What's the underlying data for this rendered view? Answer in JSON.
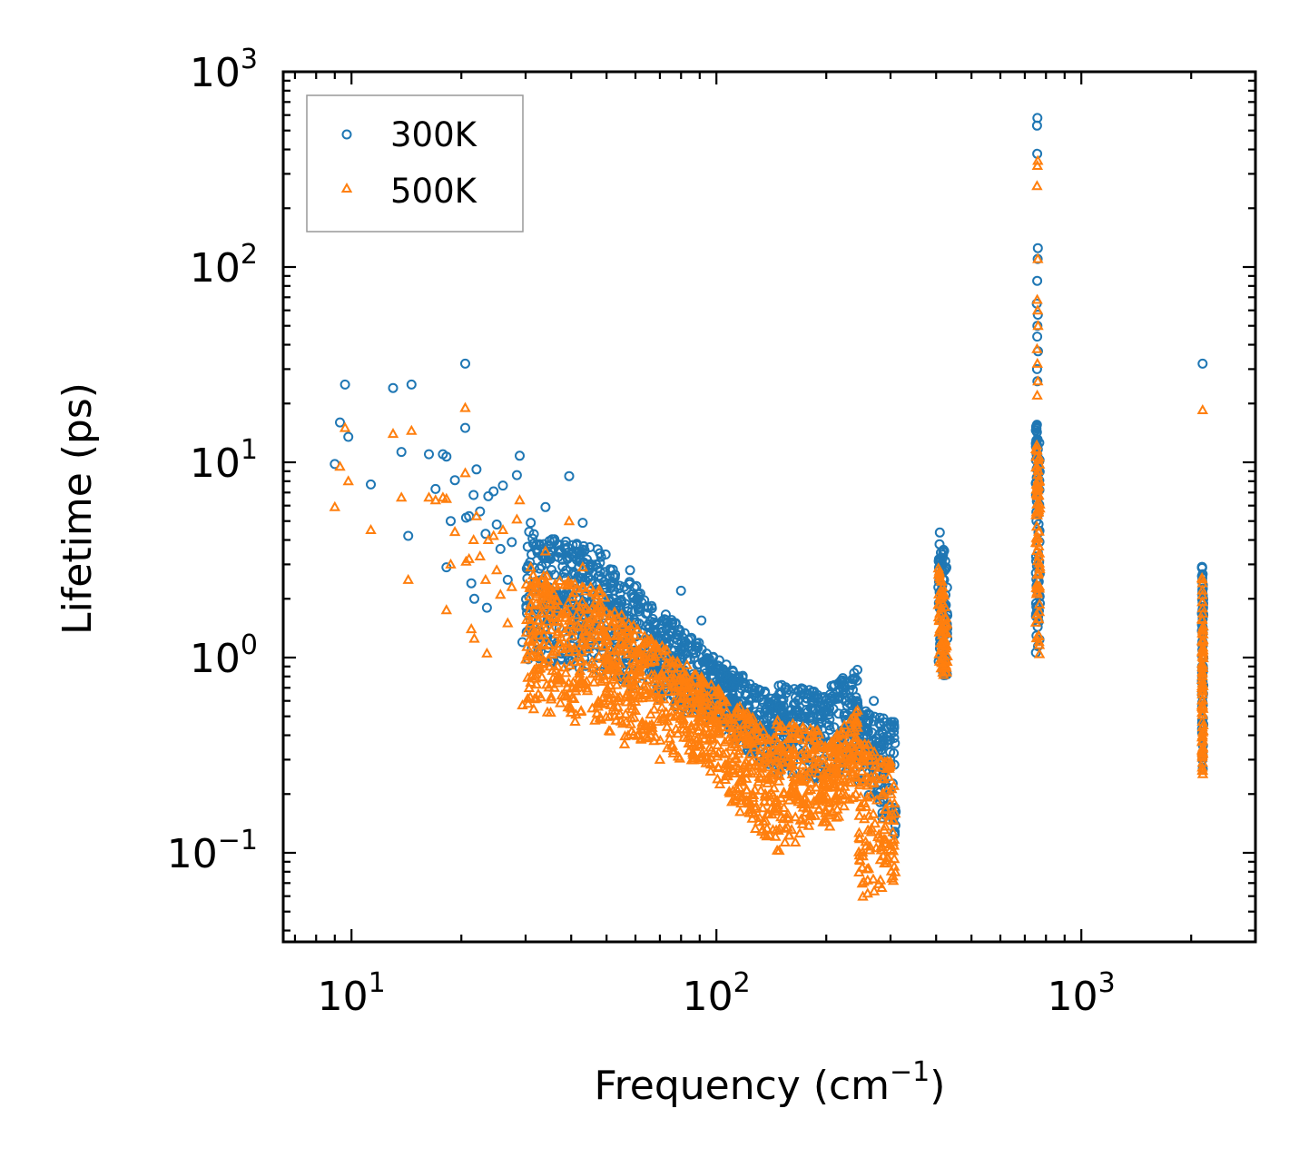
{
  "chart_data": {
    "type": "scatter",
    "title": "",
    "xlabel": "Frequency (cm",
    "xlabel_sup": "−1",
    "xlabel_end": ")",
    "ylabel": "Lifetime (ps)",
    "xscale": "log",
    "yscale": "log",
    "xlim": [
      6.5,
      3000
    ],
    "ylim": [
      0.035,
      1000
    ],
    "x_ticks": [
      {
        "value": 10,
        "base": "10",
        "exp": "1"
      },
      {
        "value": 100,
        "base": "10",
        "exp": "2"
      },
      {
        "value": 1000,
        "base": "10",
        "exp": "3"
      }
    ],
    "y_ticks": [
      {
        "value": 0.1,
        "base": "10",
        "exp": "−1"
      },
      {
        "value": 1,
        "base": "10",
        "exp": "0"
      },
      {
        "value": 10,
        "base": "10",
        "exp": "1"
      },
      {
        "value": 100,
        "base": "10",
        "exp": "2"
      },
      {
        "value": 1000,
        "base": "10",
        "exp": "3"
      }
    ],
    "legend": {
      "position": "top-left"
    },
    "series": [
      {
        "name": "300K",
        "marker": "circle",
        "color": "#1f77b4",
        "points": [
          [
            9,
            9.8
          ],
          [
            9.3,
            16
          ],
          [
            9.6,
            25
          ],
          [
            9.8,
            13.5
          ],
          [
            11.3,
            7.7
          ],
          [
            13,
            24
          ],
          [
            13.7,
            11.3
          ],
          [
            14.3,
            4.2
          ],
          [
            14.6,
            25
          ],
          [
            16.3,
            11
          ],
          [
            17,
            7.3
          ],
          [
            17.8,
            11
          ],
          [
            18.2,
            10.7
          ],
          [
            18.2,
            2.9
          ],
          [
            18.7,
            5
          ],
          [
            19.2,
            8.1
          ],
          [
            20.5,
            32
          ],
          [
            20.5,
            15
          ],
          [
            20.6,
            5.2
          ],
          [
            21,
            5.3
          ],
          [
            21.3,
            2.4
          ],
          [
            21.6,
            6.8
          ],
          [
            21.7,
            2
          ],
          [
            22,
            9.2
          ],
          [
            22.5,
            5.6
          ],
          [
            23.3,
            4.3
          ],
          [
            23.5,
            1.8
          ],
          [
            23.7,
            6.7
          ],
          [
            24.5,
            7.1
          ],
          [
            25,
            4.8
          ],
          [
            25.6,
            3.6
          ],
          [
            26,
            7.6
          ],
          [
            26.8,
            2.5
          ],
          [
            27.5,
            3.9
          ],
          [
            28.4,
            8.6
          ],
          [
            28.9,
            10.8
          ],
          [
            29.4,
            1.2
          ],
          [
            30.5,
            0.98
          ],
          [
            31,
            4.9
          ],
          [
            32.5,
            1.1
          ],
          [
            34,
            5.9
          ],
          [
            39.5,
            8.5
          ],
          [
            43,
            4.9
          ],
          [
            58,
            2.8
          ],
          [
            80,
            2.2
          ],
          [
            91,
            1.55
          ],
          [
            140,
            0.52
          ],
          [
            200,
            0.46
          ],
          [
            270,
            0.6
          ],
          [
            2150,
            32
          ]
        ],
        "bands": [
          {
            "x": [
              30,
              50
            ],
            "y_hi_start": 4.5,
            "y_hi_end": 3.5,
            "y_lo_start": 1.0,
            "y_lo_end": 0.8
          },
          {
            "x": [
              50,
              100
            ],
            "y_hi_start": 3.2,
            "y_hi_end": 1.0,
            "y_lo_start": 0.8,
            "y_lo_end": 0.45
          },
          {
            "x": [
              100,
              145
            ],
            "y_hi_start": 1.0,
            "y_hi_end": 0.62,
            "y_lo_start": 0.45,
            "y_lo_end": 0.25
          },
          {
            "x": [
              145,
              200
            ],
            "y_hi_start": 0.75,
            "y_hi_end": 0.65,
            "y_lo_start": 0.25,
            "y_lo_end": 0.22
          },
          {
            "x": [
              200,
              245
            ],
            "y_hi_start": 0.7,
            "y_hi_end": 0.88,
            "y_lo_start": 0.2,
            "y_lo_end": 0.3
          },
          {
            "x": [
              245,
              310
            ],
            "y_hi_start": 0.55,
            "y_hi_end": 0.48,
            "y_lo_start": 0.2,
            "y_lo_end": 0.12
          },
          {
            "x": [
              405,
              430
            ],
            "y_hi_start": 4.8,
            "y_hi_end": 3.0,
            "y_lo_start": 0.8,
            "y_lo_end": 0.8
          },
          {
            "x": [
              750,
              770
            ],
            "y_hi_start": 18,
            "y_hi_end": 12,
            "y_lo_start": 0.95,
            "y_lo_end": 0.95
          },
          {
            "x": [
              2140,
              2160
            ],
            "y_hi_start": 3.4,
            "y_hi_end": 2.2,
            "y_lo_start": 0.26,
            "y_lo_end": 0.26
          }
        ],
        "spikes": [
          [
            758,
            580
          ],
          [
            756,
            530
          ],
          [
            757,
            380
          ],
          [
            760,
            125
          ],
          [
            759,
            110
          ],
          [
            757,
            85
          ],
          [
            755,
            65
          ],
          [
            760,
            57
          ],
          [
            758,
            50
          ],
          [
            757,
            44
          ],
          [
            761,
            37
          ],
          [
            756,
            30
          ],
          [
            758,
            26
          ]
        ]
      },
      {
        "name": "500K",
        "marker": "triangle",
        "color": "#ff7f0e",
        "points": [
          [
            9,
            5.9
          ],
          [
            9.3,
            9.5
          ],
          [
            9.6,
            15
          ],
          [
            9.8,
            8
          ],
          [
            11.3,
            4.5
          ],
          [
            13,
            14
          ],
          [
            13.7,
            6.6
          ],
          [
            14.3,
            2.5
          ],
          [
            14.6,
            14.5
          ],
          [
            16.3,
            6.6
          ],
          [
            17,
            6.4
          ],
          [
            17.8,
            6.6
          ],
          [
            18.2,
            1.75
          ],
          [
            18.2,
            6.5
          ],
          [
            18.7,
            3
          ],
          [
            19.2,
            4.4
          ],
          [
            20.5,
            19
          ],
          [
            20.5,
            8.8
          ],
          [
            20.6,
            3.1
          ],
          [
            21,
            3.2
          ],
          [
            21.3,
            1.4
          ],
          [
            21.6,
            4
          ],
          [
            21.7,
            1.25
          ],
          [
            22,
            5.3
          ],
          [
            22.5,
            3.3
          ],
          [
            23.3,
            2.5
          ],
          [
            23.5,
            1.05
          ],
          [
            23.7,
            4
          ],
          [
            24.5,
            4.2
          ],
          [
            25,
            2.8
          ],
          [
            25.6,
            2.1
          ],
          [
            26,
            4.5
          ],
          [
            26.8,
            1.5
          ],
          [
            27.5,
            2.3
          ],
          [
            28.4,
            5.1
          ],
          [
            28.9,
            6.4
          ],
          [
            29.4,
            0.57
          ],
          [
            30.5,
            0.58
          ],
          [
            31,
            2.9
          ],
          [
            32.5,
            0.65
          ],
          [
            34,
            3.5
          ],
          [
            39.5,
            5
          ],
          [
            43,
            2.9
          ],
          [
            56,
            0.36
          ],
          [
            70,
            0.3
          ],
          [
            2150,
            18.5
          ]
        ],
        "bands": [
          {
            "x": [
              30,
              50
            ],
            "y_hi_start": 2.8,
            "y_hi_end": 2.2,
            "y_lo_start": 0.55,
            "y_lo_end": 0.42
          },
          {
            "x": [
              50,
              100
            ],
            "y_hi_start": 1.9,
            "y_hi_end": 0.7,
            "y_lo_start": 0.42,
            "y_lo_end": 0.25
          },
          {
            "x": [
              100,
              145
            ],
            "y_hi_start": 0.7,
            "y_hi_end": 0.4,
            "y_lo_start": 0.22,
            "y_lo_end": 0.1
          },
          {
            "x": [
              145,
              200
            ],
            "y_hi_start": 0.48,
            "y_hi_end": 0.42,
            "y_lo_start": 0.1,
            "y_lo_end": 0.13
          },
          {
            "x": [
              200,
              245
            ],
            "y_hi_start": 0.35,
            "y_hi_end": 0.55,
            "y_lo_start": 0.13,
            "y_lo_end": 0.18
          },
          {
            "x": [
              245,
              310
            ],
            "y_hi_start": 0.4,
            "y_hi_end": 0.28,
            "y_lo_start": 0.055,
            "y_lo_end": 0.07
          },
          {
            "x": [
              405,
              430
            ],
            "y_hi_start": 3.0,
            "y_hi_end": 1.8,
            "y_lo_start": 0.8,
            "y_lo_end": 0.8
          },
          {
            "x": [
              750,
              770
            ],
            "y_hi_start": 15,
            "y_hi_end": 10,
            "y_lo_start": 0.95,
            "y_lo_end": 0.95
          },
          {
            "x": [
              2140,
              2160
            ],
            "y_hi_start": 2.8,
            "y_hi_end": 1.9,
            "y_lo_start": 0.23,
            "y_lo_end": 0.23
          }
        ],
        "spikes": [
          [
            758,
            330
          ],
          [
            760,
            350
          ],
          [
            756,
            260
          ],
          [
            760,
            110
          ],
          [
            757,
            68
          ],
          [
            759,
            60
          ],
          [
            761,
            50
          ],
          [
            756,
            38
          ],
          [
            758,
            32
          ],
          [
            760,
            26
          ],
          [
            757,
            22
          ]
        ]
      }
    ]
  }
}
